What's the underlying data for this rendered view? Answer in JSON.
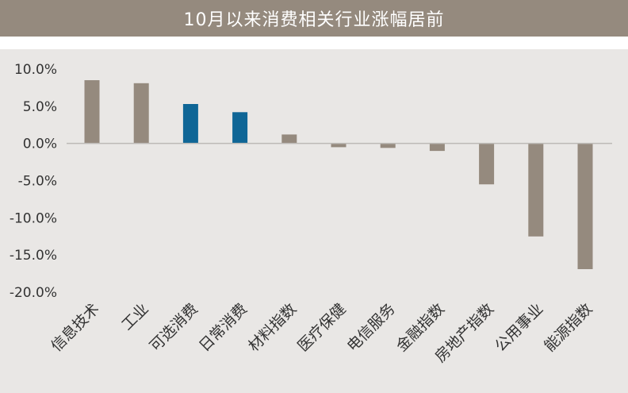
{
  "header": {
    "title": "10月以来消费相关行业涨幅居前"
  },
  "colors": {
    "default_bar": "#958a7e",
    "highlight_bar": "#0f6696",
    "zero_line": "#bdbab6"
  },
  "chart_data": {
    "type": "bar",
    "title": "10月以来消费相关行业涨幅居前",
    "xlabel": "",
    "ylabel": "",
    "ylim": [
      -0.2,
      0.1
    ],
    "yticks": [
      "10.0%",
      "5.0%",
      "0.0%",
      "-5.0%",
      "-10.0%",
      "-15.0%",
      "-20.0%"
    ],
    "categories": [
      "信息技术",
      "工业",
      "可选消费",
      "日常消费",
      "材料指数",
      "医疗保健",
      "电信服务",
      "金融指数",
      "房地产指数",
      "公用事业",
      "能源指数"
    ],
    "values": [
      0.085,
      0.081,
      0.053,
      0.042,
      0.012,
      -0.005,
      -0.006,
      -0.01,
      -0.055,
      -0.125,
      -0.169
    ],
    "highlight": [
      false,
      false,
      true,
      true,
      false,
      false,
      false,
      false,
      false,
      false,
      false
    ],
    "grid": false,
    "legend": "none"
  }
}
